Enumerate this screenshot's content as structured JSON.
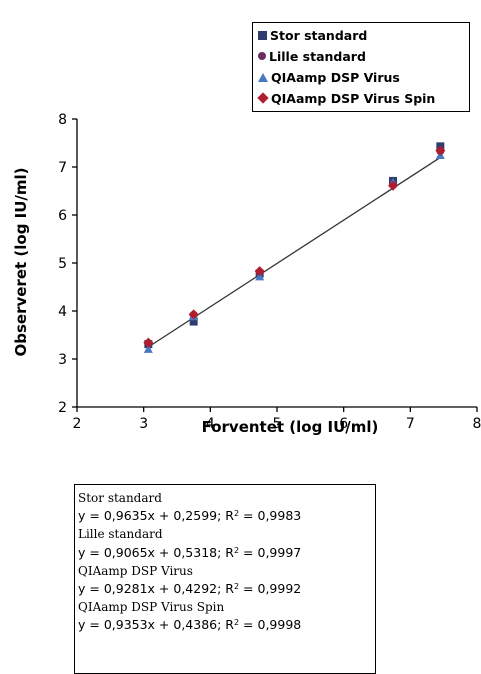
{
  "chart_data": {
    "type": "scatter",
    "title": "",
    "xlabel": "Forventet (log IU/ml)",
    "ylabel": "Observeret (log IU/ml)",
    "xlim": [
      2,
      8
    ],
    "ylim": [
      2,
      8
    ],
    "x_ticks": [
      "2",
      "3",
      "4",
      "5",
      "6",
      "7",
      "8"
    ],
    "y_ticks": [
      "2",
      "3",
      "4",
      "5",
      "6",
      "7",
      "8"
    ],
    "grid": false,
    "legend_position": "top-right",
    "series": [
      {
        "name": "Stor standard",
        "marker": "square",
        "color": "#2e3d6e",
        "x": [
          3.07,
          3.75,
          4.74,
          6.74,
          7.45
        ],
        "y": [
          3.31,
          3.78,
          4.78,
          6.71,
          7.43
        ]
      },
      {
        "name": "Lille standard",
        "marker": "circle",
        "color": "#6b2f5e",
        "x": [
          3.07,
          3.75,
          4.74,
          6.74,
          7.45
        ],
        "y": [
          3.32,
          3.92,
          4.81,
          6.64,
          7.33
        ]
      },
      {
        "name": "QIAamp DSP Virus",
        "marker": "triangle",
        "color": "#4a78c0",
        "x": [
          3.07,
          3.75,
          4.74,
          6.74,
          7.45
        ],
        "y": [
          3.2,
          3.88,
          4.71,
          6.67,
          7.24
        ]
      },
      {
        "name": "QIAamp DSP Virus Spin",
        "marker": "diamond",
        "color": "#b01e2e",
        "x": [
          3.07,
          3.75,
          4.74,
          6.74,
          7.45
        ],
        "y": [
          3.34,
          3.93,
          4.83,
          6.61,
          7.34
        ]
      }
    ],
    "trendline": {
      "x": [
        3.07,
        7.45
      ],
      "y": [
        3.25,
        7.2
      ],
      "color": "#333333"
    },
    "equations": [
      {
        "name": "Stor standard",
        "equation": "y = 0,9635x + 0,2599; R",
        "r2": "2",
        "r2_value": " = 0,9983"
      },
      {
        "name": "Lille standard",
        "equation": "y = 0,9065x + 0,5318; R",
        "r2": "2",
        "r2_value": " = 0,9997"
      },
      {
        "name": "QIAamp DSP Virus",
        "equation": "y = 0,9281x + 0,4292; R",
        "r2": "2",
        "r2_value": " = 0,9992"
      },
      {
        "name": "QIAamp DSP Virus Spin",
        "equation": "y = 0,9353x + 0,4386; R",
        "r2": "2",
        "r2_value": " = 0,9998"
      }
    ]
  }
}
